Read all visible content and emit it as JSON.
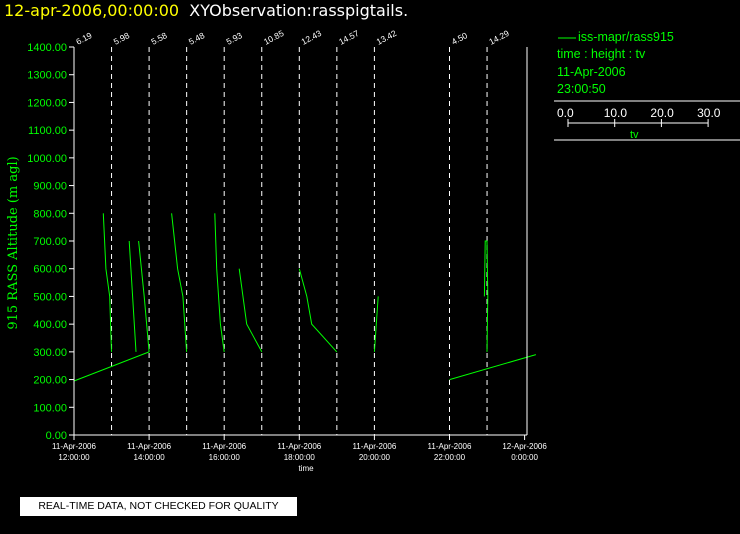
{
  "header": {
    "date": "12-apr-2006,00:00:00",
    "title": "XYObservation:rasspigtails."
  },
  "legend": {
    "series_label": "iss-mapr/rass915",
    "axes_label": "time : height : tv",
    "date": "11-Apr-2006",
    "time": "23:00:50",
    "scale_ticks": [
      "0.0",
      "10.0",
      "20.0",
      "30.0"
    ],
    "scale_label": "tv"
  },
  "footer": {
    "quality_note": "REAL-TIME DATA, NOT CHECKED FOR QUALITY"
  },
  "colors": {
    "background": "#000000",
    "title": "#ffffff",
    "title_date": "#ffff00",
    "data": "#00ff00",
    "axes": "#ffffff"
  },
  "chart_data": {
    "type": "line",
    "title": "XYObservation:rasspigtails.",
    "xlabel": "time",
    "ylabel": "915 RASS Altitude (m agl)",
    "ylim": [
      0,
      1400
    ],
    "xlim": [
      11.5,
      24.5
    ],
    "y_ticks": [
      0,
      100,
      200,
      300,
      400,
      500,
      600,
      700,
      800,
      900,
      1000,
      1100,
      1200,
      1300,
      1400
    ],
    "y_tick_labels": [
      "0.00",
      "100.00",
      "200.00",
      "300.00",
      "400.00",
      "500.00",
      "600.00",
      "700.00",
      "800.00",
      "900.00",
      "1000.00",
      "1100.00",
      "1200.00",
      "1300.00",
      "1400.00"
    ],
    "x_ticks": [
      {
        "hour": 12,
        "date": "11-Apr-2006",
        "time": "12:00:00"
      },
      {
        "hour": 14,
        "date": "11-Apr-2006",
        "time": "14:00:00"
      },
      {
        "hour": 16,
        "date": "11-Apr-2006",
        "time": "16:00:00"
      },
      {
        "hour": 18,
        "date": "11-Apr-2006",
        "time": "18:00:00"
      },
      {
        "hour": 20,
        "date": "11-Apr-2006",
        "time": "20:00:00"
      },
      {
        "hour": 22,
        "date": "11-Apr-2006",
        "time": "22:00:00"
      },
      {
        "hour": 24,
        "date": "12-Apr-2006",
        "time": "0:00:00"
      }
    ],
    "grid": false,
    "legend_position": "top-right",
    "reference_lines": [
      {
        "hour": 12.0,
        "label": "6.19"
      },
      {
        "hour": 13.0,
        "label": "5.98"
      },
      {
        "hour": 14.0,
        "label": "5.58"
      },
      {
        "hour": 15.0,
        "label": "5.48"
      },
      {
        "hour": 16.0,
        "label": "5.93"
      },
      {
        "hour": 17.0,
        "label": "10.85"
      },
      {
        "hour": 18.0,
        "label": "12.43"
      },
      {
        "hour": 19.0,
        "label": "14.57"
      },
      {
        "hour": 20.0,
        "label": "13.42"
      },
      {
        "hour": 22.0,
        "label": "4.50"
      },
      {
        "hour": 23.0,
        "label": "14.29"
      }
    ],
    "series": [
      {
        "name": "iss-mapr/rass915",
        "segments": [
          [
            [
              12.0,
              195
            ],
            [
              14.0,
              300
            ]
          ],
          [
            [
              12.78,
              800
            ],
            [
              12.85,
              600
            ],
            [
              12.95,
              500
            ],
            [
              13.0,
              300
            ]
          ],
          [
            [
              13.47,
              700
            ],
            [
              13.56,
              500
            ],
            [
              13.65,
              300
            ]
          ],
          [
            [
              13.72,
              700
            ],
            [
              13.87,
              500
            ],
            [
              14.0,
              300
            ]
          ],
          [
            [
              14.6,
              800
            ],
            [
              14.76,
              600
            ],
            [
              14.9,
              500
            ],
            [
              15.0,
              300
            ]
          ],
          [
            [
              15.75,
              800
            ],
            [
              15.8,
              600
            ],
            [
              15.9,
              400
            ],
            [
              16.0,
              300
            ]
          ],
          [
            [
              16.4,
              600
            ],
            [
              16.6,
              400
            ],
            [
              17.0,
              300
            ]
          ],
          [
            [
              18.0,
              600
            ],
            [
              18.2,
              500
            ],
            [
              18.33,
              400
            ],
            [
              19.0,
              300
            ]
          ],
          [
            [
              20.0,
              300
            ],
            [
              20.05,
              400
            ],
            [
              20.1,
              500
            ]
          ],
          [
            [
              22.0,
              200
            ],
            [
              24.3,
              290
            ]
          ],
          [
            [
              22.93,
              500
            ],
            [
              22.95,
              700
            ],
            [
              23.0,
              700
            ],
            [
              23.02,
              500
            ],
            [
              23.0,
              300
            ]
          ]
        ]
      }
    ]
  }
}
